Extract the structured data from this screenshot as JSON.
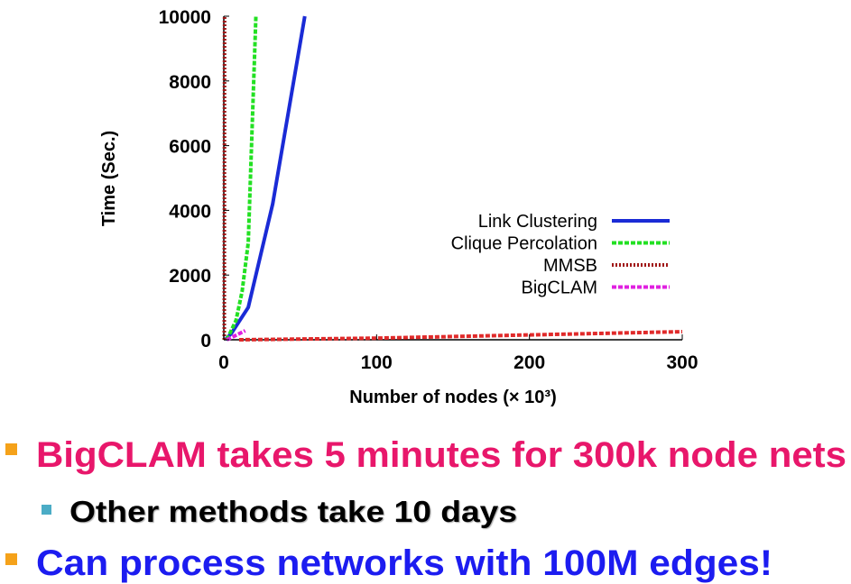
{
  "chart_data": {
    "type": "line",
    "xlabel": "Number of nodes (× 10³)",
    "ylabel": "Time (Sec.)",
    "xlim": [
      0,
      300
    ],
    "ylim": [
      0,
      10000
    ],
    "xticks": [
      0,
      100,
      200,
      300
    ],
    "yticks": [
      0,
      2000,
      4000,
      6000,
      8000,
      10000
    ],
    "legend": "right",
    "series": [
      {
        "name": "Link Clustering",
        "color": "#1a2bd6",
        "line_style": "solid",
        "x": [
          1,
          5,
          16,
          32,
          53
        ],
        "values": [
          0,
          200,
          1000,
          4200,
          10000
        ]
      },
      {
        "name": "Clique Percolation",
        "color": "#22e022",
        "line_style": "dashed",
        "x": [
          2,
          8,
          12,
          16,
          21
        ],
        "values": [
          0,
          600,
          1500,
          3000,
          10000
        ]
      },
      {
        "name": "MMSB",
        "color": "#a01818",
        "line_style": "dotted",
        "x": [
          0.3,
          0.5
        ],
        "values": [
          0,
          10000
        ]
      },
      {
        "name": "BigCLAM",
        "color": "#e020e0",
        "line_style": "dashed",
        "x": [
          2,
          14
        ],
        "values": [
          0,
          280
        ]
      },
      {
        "color": "#e02a2a",
        "line_style": "dashed",
        "x": [
          10,
          100,
          200,
          300
        ],
        "values": [
          0,
          50,
          150,
          250
        ]
      }
    ]
  },
  "bullets": [
    {
      "text": "BigCLAM takes 5 minutes for 300k node nets",
      "sub": "Other methods take 10 days"
    },
    {
      "text": "Can process networks with 100M edges!"
    }
  ]
}
